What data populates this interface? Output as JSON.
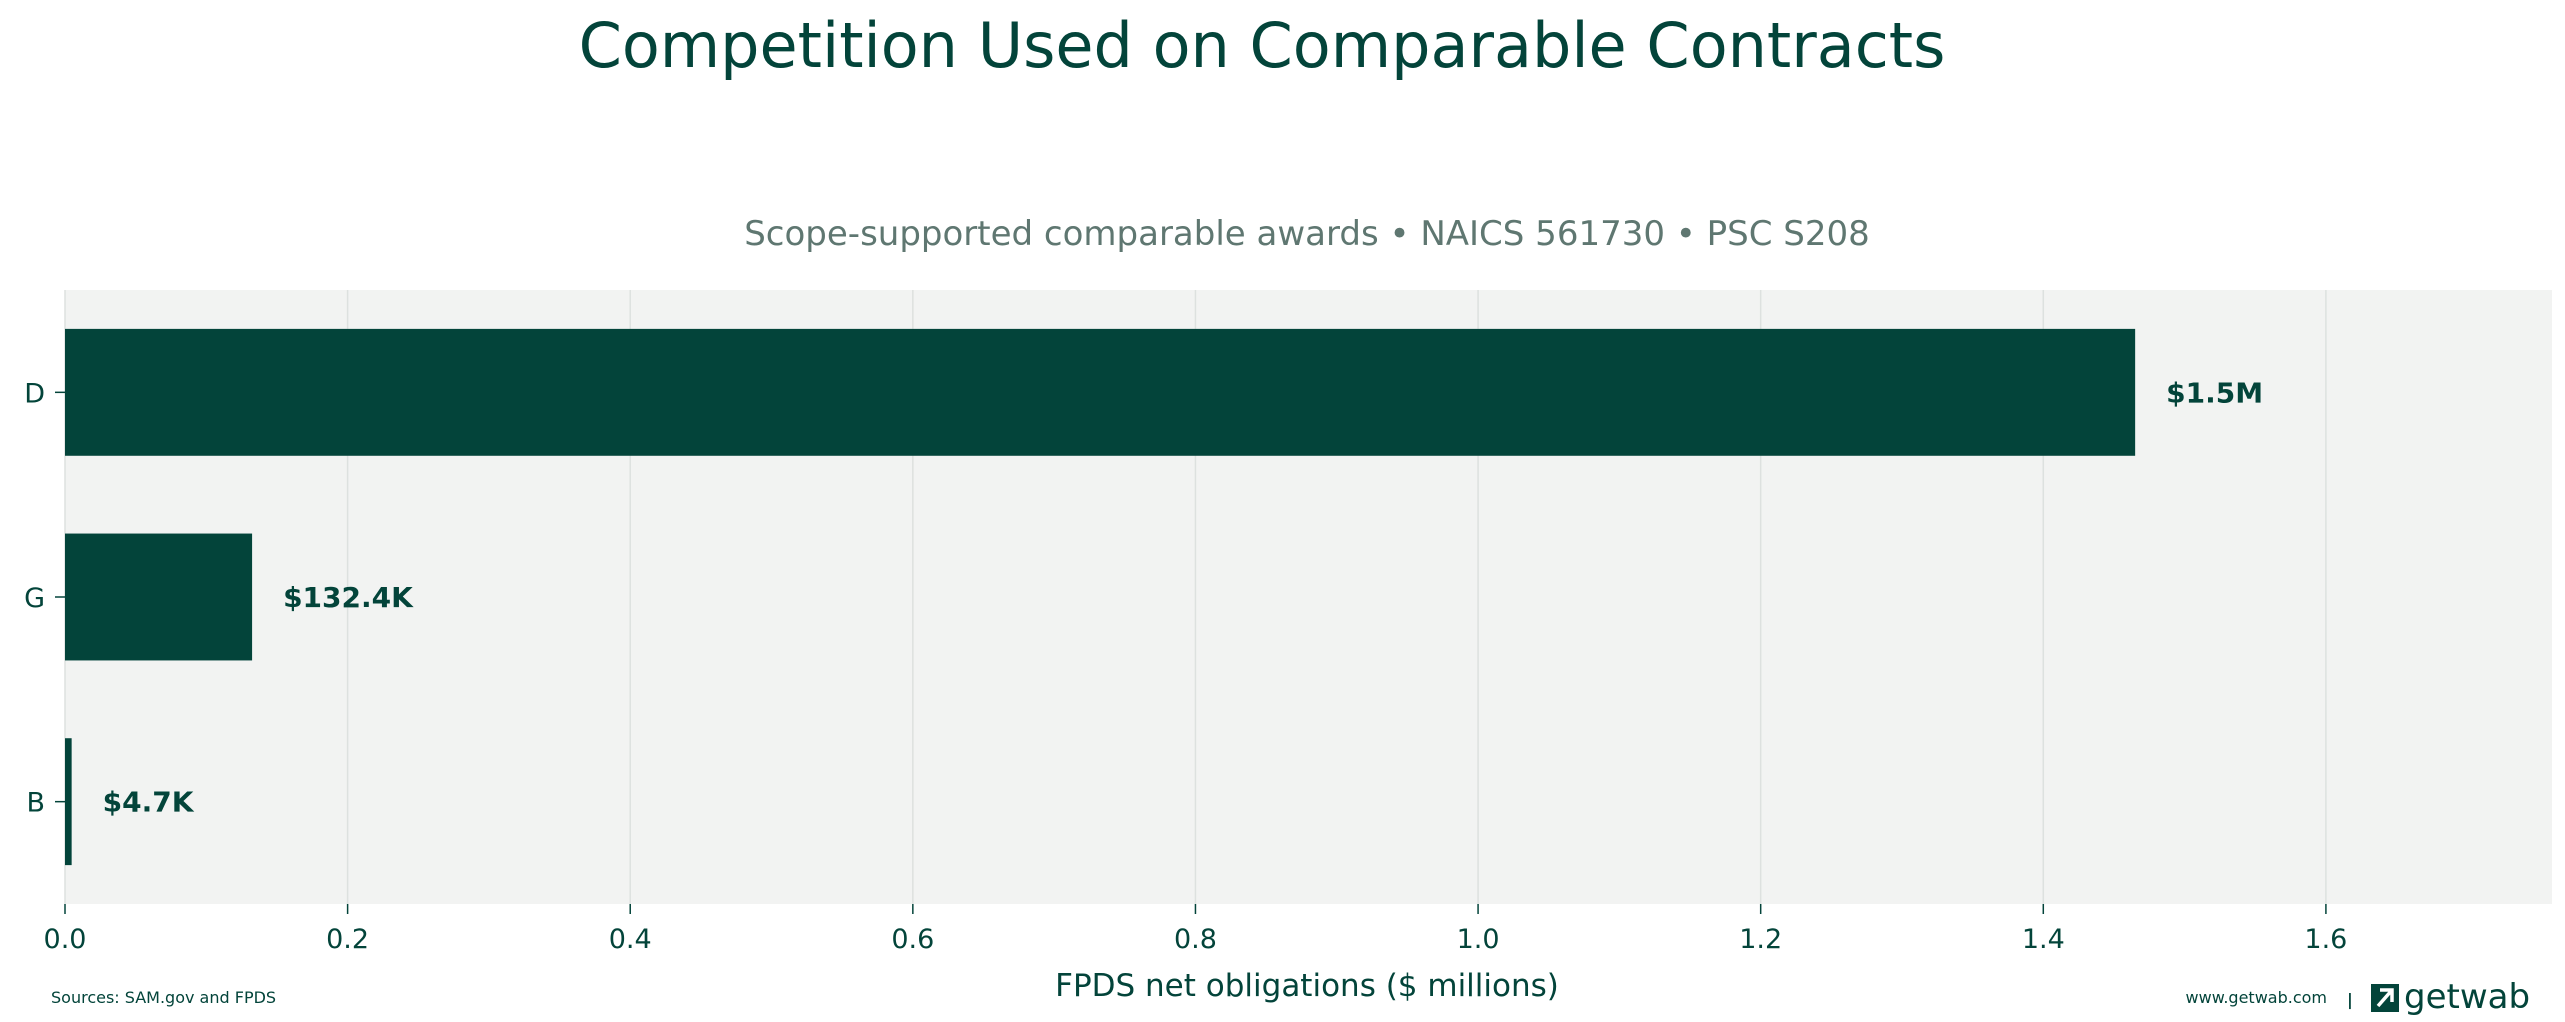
{
  "chart_data": {
    "type": "bar",
    "orientation": "horizontal",
    "title": "Competition Used on Comparable Contracts",
    "subtitle": "Scope-supported comparable awards • NAICS 561730 • PSC S208",
    "xlabel": "FPDS net obligations ($ millions)",
    "ylabel": "",
    "categories": [
      "D",
      "G",
      "B"
    ],
    "values": [
      1.465,
      0.1324,
      0.0047
    ],
    "data_labels": [
      "$1.5M",
      "$132.4K",
      "$4.7K"
    ],
    "xlim": [
      0,
      1.76
    ],
    "x_ticks": [
      0.0,
      0.2,
      0.4,
      0.6,
      0.8,
      1.0,
      1.2,
      1.4,
      1.6
    ],
    "x_tick_labels": [
      "0.0",
      "0.2",
      "0.4",
      "0.6",
      "0.8",
      "1.0",
      "1.2",
      "1.4",
      "1.6"
    ],
    "grid": "vertical",
    "colors": {
      "bar": "#03443a",
      "plot_background": "#f2f3f2",
      "text": "#03443a",
      "subtitle": "#5f7771",
      "grid": "#dde1df"
    }
  },
  "footer": {
    "source": "Sources: SAM.gov and FPDS",
    "website": "www.getwab.com",
    "separator": "|",
    "brand_name": "getwab",
    "brand_icon": "getwab-logo-icon"
  }
}
